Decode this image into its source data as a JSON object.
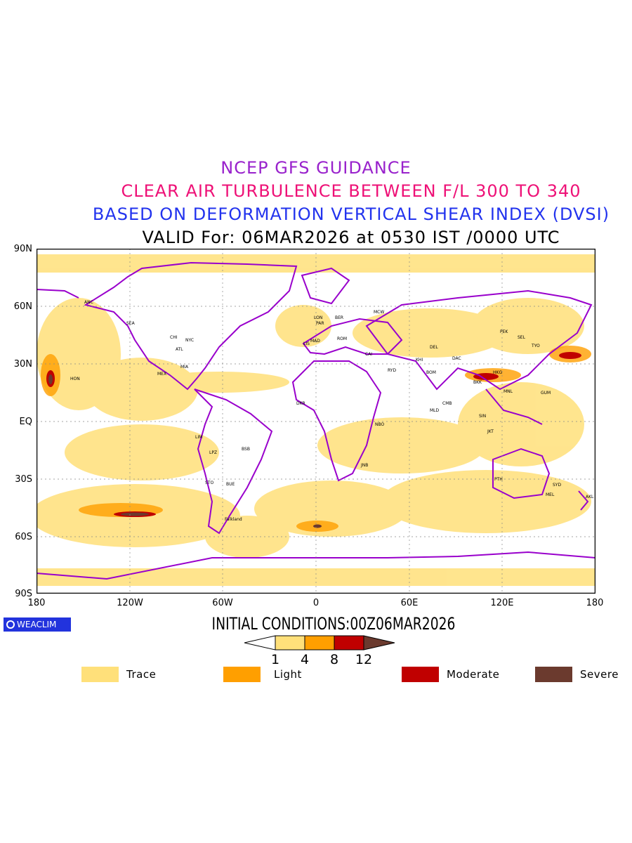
{
  "titles": {
    "line1": "NCEP GFS GUIDANCE",
    "line2": "CLEAR AIR TURBULENCE BETWEEN F/L 300 TO 340",
    "line3": "BASED ON DEFORMATION VERTICAL SHEAR INDEX (DVSI)",
    "line4": "VALID For: 06MAR2026 at 0530 IST /0000 UTC"
  },
  "colors": {
    "line1": "#9922cc",
    "line2": "#ee1177",
    "line3": "#2233ee",
    "line4": "#000000",
    "coast": "#9900cc",
    "trace": "#ffe07a",
    "light": "#ff9f00",
    "moderate": "#c00000",
    "severe": "#6b3a2e"
  },
  "axes": {
    "lat_labels": [
      "90N",
      "60N",
      "30N",
      "EQ",
      "30S",
      "60S",
      "90S"
    ],
    "lon_labels": [
      "180",
      "120W",
      "60W",
      "0",
      "60E",
      "120E",
      "180"
    ]
  },
  "logo": "WEACLIM",
  "initial_conditions": "INITIAL CONDITIONS:00Z06MAR2026",
  "colorbar": {
    "ticks": [
      "1",
      "4",
      "8",
      "12"
    ]
  },
  "legend": [
    {
      "label": "Trace",
      "color": "#ffe07a"
    },
    {
      "label": "Light",
      "color": "#ff9f00"
    },
    {
      "label": "Moderate",
      "color": "#c00000"
    },
    {
      "label": "Severe",
      "color": "#6b3a2e"
    }
  ],
  "stations": [
    "ANC",
    "HON",
    "SEA",
    "CHI",
    "NYC",
    "ATL",
    "MIA",
    "MEX",
    "LIM",
    "LPZ",
    "BSB",
    "STO",
    "BUE",
    "DKR",
    "LIS",
    "MAD",
    "PAR",
    "LON",
    "BER",
    "ROM",
    "MCW",
    "CAI",
    "RYD",
    "NBO",
    "JNB",
    "DEL",
    "BOM",
    "KHI",
    "DAC",
    "BKK",
    "HKG",
    "TYO",
    "PEK",
    "SEL",
    "SIN",
    "JKT",
    "MNL",
    "GUM",
    "SYD",
    "PTH",
    "MEL",
    "AKL",
    "Falkland",
    "MLD",
    "CMB"
  ]
}
